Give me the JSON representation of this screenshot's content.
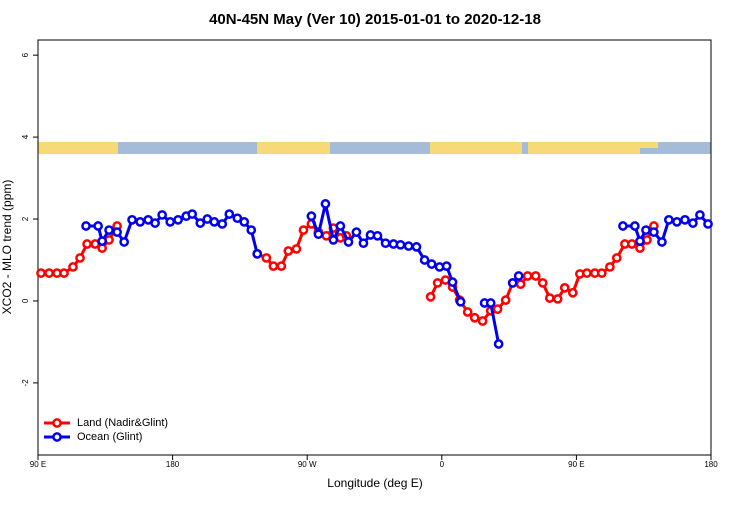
{
  "chart_data": {
    "type": "line",
    "title": "40N-45N May (Ver 10)   2015-01-01 to 2020-12-18",
    "x_label": "Longitude (deg E)",
    "y_label": "XCO2 - MLO trend (ppm)",
    "xlim": [
      90,
      540
    ],
    "xticks": [
      {
        "value": 90,
        "label": "90 E"
      },
      180,
      {
        "value": 270,
        "label": "90 W"
      },
      0,
      {
        "value": 450,
        "label": "90 E"
      },
      {
        "value": 540,
        "label": "180"
      }
    ],
    "ylim": [
      -3.76,
      6.37
    ],
    "yticks": [
      -2,
      0,
      2,
      4,
      6
    ],
    "legend": "bottom-left",
    "series": [
      {
        "name": "Land (Nadir&Glint)",
        "color": "#ff0000",
        "x": [
          92.0,
          97.4,
          102.7,
          107.4,
          113.4,
          118.1,
          122.8,
          128.2,
          132.9,
          137.5,
          142.9,
          190,
          236.6,
          242.7,
          247.4,
          252.7,
          257.4,
          262.8,
          267.5,
          272.8,
          277.5,
          282.8,
          287.5,
          292.2,
          296.2,
          320,
          352.5,
          357.2,
          362.5,
          367.2,
          371.9,
          377.3,
          382.0,
          387.3,
          392.7,
          397.3,
          402.7,
          407.4,
          412.7,
          417.4,
          422.8,
          427.5,
          432.2,
          437.5,
          442.2,
          447.6,
          452.3,
          457.0,
          462.3,
          467.0,
          472.4,
          477.0,
          482.4,
          487.1,
          492.5,
          497.2,
          501.8
        ],
        "values": [
          0.68,
          0.68,
          0.68,
          0.68,
          0.83,
          1.05,
          1.39,
          1.39,
          1.29,
          1.49,
          1.83,
          null,
          1.15,
          1.05,
          0.85,
          0.85,
          1.22,
          1.27,
          1.73,
          1.88,
          1.68,
          1.59,
          1.78,
          1.54,
          1.59,
          null,
          0.1,
          0.44,
          0.51,
          0.34,
          0.02,
          -0.27,
          -0.41,
          -0.49,
          -0.24,
          -0.2,
          0.02,
          0.44,
          0.41,
          0.61,
          0.61,
          0.44,
          0.07,
          0.05,
          0.32,
          0.2,
          0.66,
          0.68,
          0.68,
          0.68,
          0.83,
          1.05,
          1.39,
          1.39,
          1.29,
          1.49,
          1.83
        ]
      },
      {
        "name": "Ocean (Glint)",
        "color": "#0000ee",
        "x": [
          122.1,
          130.2,
          132.9,
          137.5,
          142.9,
          147.6,
          152.9,
          158.3,
          163.7,
          168.3,
          173.0,
          178.4,
          183.7,
          189.1,
          193.1,
          198.5,
          203.2,
          207.9,
          213.2,
          217.9,
          223.3,
          227.9,
          232.6,
          236.6,
          255,
          272.8,
          277.5,
          282.2,
          287.5,
          292.2,
          297.6,
          302.9,
          307.6,
          312.3,
          317.0,
          322.4,
          327.7,
          332.4,
          337.8,
          343.1,
          348.5,
          353.2,
          358.5,
          363.2,
          367.2,
          372.6,
          380,
          388.6,
          392.7,
          398.0,
          403,
          407.4,
          411.4,
          450,
          481.1,
          489.1,
          492.5,
          496.5,
          501.8,
          507.2,
          511.8,
          517.2,
          522.6,
          527.9,
          532.6,
          538.0
        ],
        "values": [
          1.83,
          1.83,
          1.46,
          1.73,
          1.68,
          1.44,
          1.98,
          1.93,
          1.98,
          1.9,
          2.1,
          1.93,
          1.98,
          2.07,
          2.12,
          1.9,
          2.0,
          1.93,
          1.88,
          2.12,
          2.02,
          1.93,
          1.73,
          1.15,
          null,
          2.07,
          1.63,
          2.37,
          1.49,
          1.83,
          1.44,
          1.68,
          1.41,
          1.61,
          1.59,
          1.41,
          1.39,
          1.37,
          1.34,
          1.32,
          1.0,
          0.9,
          0.83,
          0.85,
          0.46,
          -0.02,
          null,
          -0.05,
          -0.05,
          -1.05,
          null,
          0.44,
          0.61,
          null,
          1.83,
          1.83,
          1.46,
          1.73,
          1.68,
          1.44,
          1.98,
          1.93,
          1.98,
          1.9,
          2.1,
          1.88
        ]
      }
    ]
  }
}
